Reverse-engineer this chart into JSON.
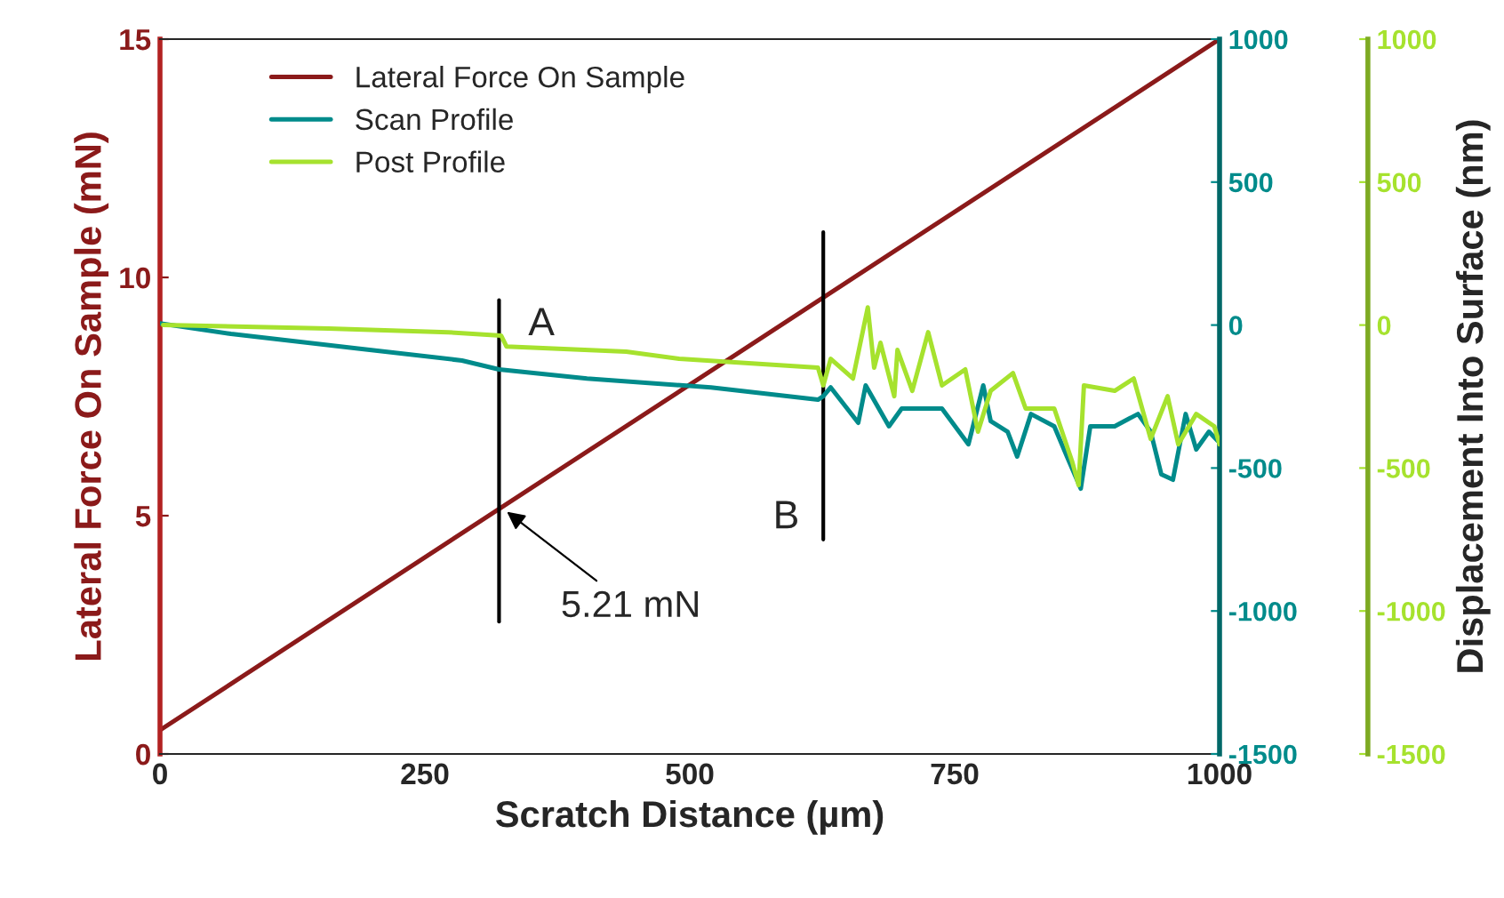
{
  "chart_data": {
    "type": "line",
    "xlabel": "Scratch Distance (µm)",
    "ylabel": "Lateral Force On Sample (mN)",
    "y2label": "Displacement Into Surface (nm)",
    "xlim": [
      0,
      1000
    ],
    "xticks": [
      0,
      250,
      500,
      750,
      1000
    ],
    "ylim": [
      0,
      15
    ],
    "yticks": [
      0,
      5,
      10,
      15
    ],
    "y2lim": [
      -1500,
      1000
    ],
    "y2ticks": [
      -1500,
      -1000,
      -500,
      0,
      500,
      1000
    ],
    "y3lim": [
      -1500,
      1000
    ],
    "y3ticks": [
      -1500,
      -1000,
      -500,
      0,
      500,
      1000
    ],
    "legend": "top left",
    "grid": false,
    "series": [
      {
        "name": "Lateral Force On Sample",
        "color": "#8b1a1a",
        "x": [
          0,
          1000
        ],
        "values": [
          0.5,
          15
        ]
      },
      {
        "name": "Scan Profile",
        "color": "#008b8b",
        "axis": "y2",
        "x": [
          0,
          67,
          185,
          285,
          320,
          403,
          520,
          621,
          626,
          633,
          659,
          666,
          688,
          700,
          738,
          763,
          777,
          784,
          800,
          809,
          822,
          844,
          856,
          869,
          878,
          901,
          923,
          935,
          945,
          956,
          968,
          978,
          990,
          998
        ],
        "values": [
          6,
          -31,
          -81,
          -124,
          -155,
          -187,
          -218,
          -261,
          -249,
          -218,
          -342,
          -211,
          -354,
          -292,
          -292,
          -417,
          -211,
          -336,
          -373,
          -460,
          -311,
          -354,
          -460,
          -572,
          -354,
          -354,
          -311,
          -373,
          -522,
          -541,
          -311,
          -435,
          -373,
          -404
        ]
      },
      {
        "name": "Post Profile",
        "color": "#a6e22e",
        "axis": "y3",
        "x": [
          3,
          159,
          272,
          322,
          327,
          440,
          490,
          621,
          626,
          633,
          654,
          668,
          674,
          680,
          693,
          696,
          710,
          725,
          738,
          760,
          772,
          784,
          805,
          817,
          844,
          861,
          867,
          872,
          901,
          919,
          935,
          951,
          961,
          978,
          995,
          1000
        ],
        "values": [
          0,
          -12,
          -25,
          -37,
          -75,
          -93,
          -118,
          -149,
          -211,
          -118,
          -187,
          62,
          -149,
          -62,
          -249,
          -87,
          -230,
          -25,
          -211,
          -155,
          -373,
          -230,
          -168,
          -292,
          -292,
          -479,
          -560,
          -211,
          -230,
          -187,
          -398,
          -249,
          -417,
          -311,
          -354,
          -417
        ]
      }
    ],
    "annotations": [
      "A",
      "B",
      {
        "text": "5.21 mN",
        "x": 320,
        "y": 5.21
      }
    ]
  }
}
